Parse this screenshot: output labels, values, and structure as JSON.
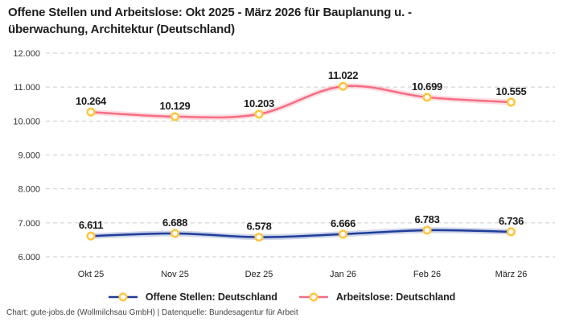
{
  "title": {
    "line1": "Offene Stellen und Arbeitslose: Okt 2025 - März 2026 für Bauplanung u. -",
    "line2": "überwachung, Architektur (Deutschland)"
  },
  "footer": "Chart: gute-jobs.de (Wollmilchsau GmbH) | Datenquelle: Bundesagentur für Arbeit",
  "colors": {
    "open_positions_line": "#1f3d99",
    "unemployed_line": "#f66e84",
    "marker_ring": "#ffc53d",
    "marker_fill": "#ffffff",
    "gridline": "#cccccc",
    "tick_text": "#333333",
    "data_label_text": "#1a1a1a"
  },
  "chart_data": {
    "type": "line",
    "title": "Offene Stellen und Arbeitslose: Okt 2025 - März 2026 für Bauplanung u. -überwachung, Architektur (Deutschland)",
    "categories": [
      "Okt 25",
      "Nov 25",
      "Dez 25",
      "Jan 26",
      "Feb 26",
      "März 26"
    ],
    "series": [
      {
        "name": "Offene Stellen: Deutschland",
        "color": "#1f3d99",
        "values": [
          6611,
          6688,
          6578,
          6666,
          6783,
          6736
        ],
        "labels": [
          "6.611",
          "6.688",
          "6.578",
          "6.666",
          "6.783",
          "6.736"
        ]
      },
      {
        "name": "Arbeitslose: Deutschland",
        "color": "#f66e84",
        "values": [
          10264,
          10129,
          10203,
          11022,
          10699,
          10555
        ],
        "labels": [
          "10.264",
          "10.129",
          "10.203",
          "11.022",
          "10.699",
          "10.555"
        ]
      }
    ],
    "ylim": [
      6000,
      12000
    ],
    "ytick_step": 1000,
    "ytick_labels": [
      "6.000",
      "7.000",
      "8.000",
      "9.000",
      "10.000",
      "11.000",
      "12.000"
    ],
    "grid": "horizontal-dashed",
    "legend_position": "bottom",
    "marker_style": "open-circle-yellow",
    "line_style": "smooth"
  }
}
